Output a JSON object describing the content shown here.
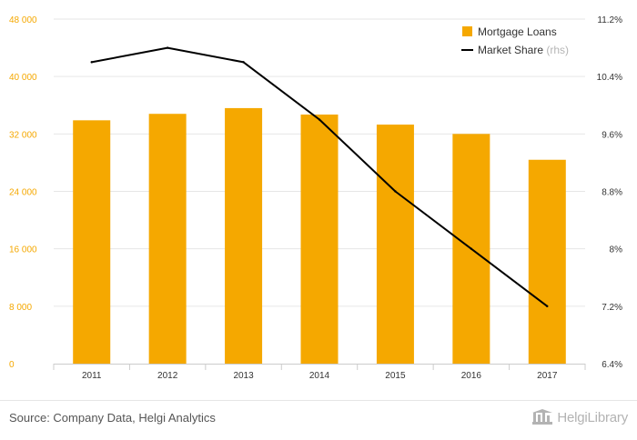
{
  "chart_data": {
    "type": "bar",
    "categories": [
      "2011",
      "2012",
      "2013",
      "2014",
      "2015",
      "2016",
      "2017"
    ],
    "series": [
      {
        "name": "Mortgage Loans",
        "type": "bar",
        "axis": "left",
        "color": "#f5a800",
        "values": [
          33900,
          34800,
          35600,
          34700,
          33300,
          32000,
          28400
        ]
      },
      {
        "name": "Market Share",
        "name_suffix": "(rhs)",
        "type": "line",
        "axis": "right",
        "color": "#000000",
        "values": [
          10.6,
          10.8,
          10.6,
          9.8,
          8.8,
          8.0,
          7.2
        ]
      }
    ],
    "y_left": {
      "ylim": [
        0,
        48000
      ],
      "ticks": [
        0,
        8000,
        16000,
        24000,
        32000,
        40000,
        48000
      ],
      "tick_labels": [
        "0",
        "8 000",
        "16 000",
        "24 000",
        "32 000",
        "40 000",
        "48 000"
      ]
    },
    "y_right": {
      "ylim": [
        6.4,
        11.2
      ],
      "ticks": [
        6.4,
        7.2,
        8.0,
        8.8,
        9.6,
        10.4,
        11.2
      ],
      "tick_labels": [
        "6.4%",
        "7.2%",
        "8%",
        "8.8%",
        "9.6%",
        "10.4%",
        "11.2%"
      ]
    },
    "grid": true,
    "legend_position": "top-right",
    "title": "",
    "xlabel": "",
    "ylabel": ""
  },
  "footer": {
    "source": "Source: Company Data, Helgi Analytics",
    "brand": "HelgiLibrary"
  },
  "colors": {
    "bar": "#f5a800",
    "line": "#000000",
    "grid": "#e6e6e6",
    "brand": "#b3b3b3"
  }
}
